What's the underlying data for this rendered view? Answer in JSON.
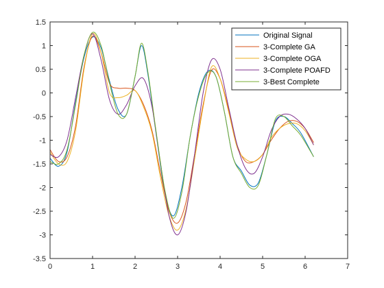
{
  "chart_data": {
    "type": "line",
    "title": "",
    "xlabel": "",
    "ylabel": "",
    "xlim": [
      0,
      7
    ],
    "ylim": [
      -3.5,
      1.5
    ],
    "xticks": [
      0,
      1,
      2,
      3,
      4,
      5,
      6,
      7
    ],
    "xtick_labels": [
      "0",
      "1",
      "2",
      "3",
      "4",
      "5",
      "6",
      "7"
    ],
    "yticks": [
      -3.5,
      -3,
      -2.5,
      -2,
      -1.5,
      -1,
      -0.5,
      0,
      0.5,
      1,
      1.5
    ],
    "ytick_labels": [
      "-3.5",
      "-3",
      "-2.5",
      "-2",
      "-1.5",
      "-1",
      "-0.5",
      "0",
      "0.5",
      "1",
      "1.5"
    ],
    "grid": false,
    "legend_position": "top-right",
    "series": [
      {
        "name": "Original Signal",
        "color": "#0072BD",
        "x": [
          0,
          0.2,
          0.4,
          0.6,
          0.8,
          1.0,
          1.2,
          1.4,
          1.6,
          1.8,
          2.0,
          2.15,
          2.3,
          2.5,
          2.7,
          2.9,
          3.1,
          3.3,
          3.5,
          3.7,
          3.9,
          4.1,
          4.3,
          4.5,
          4.7,
          4.9,
          5.1,
          5.3,
          5.5,
          5.7,
          5.9,
          6.2
        ],
        "y": [
          -1.38,
          -1.55,
          -1.25,
          -0.2,
          0.75,
          1.18,
          0.95,
          0.25,
          -0.35,
          -0.45,
          0.35,
          1.0,
          0.4,
          -0.9,
          -2.1,
          -2.6,
          -2.0,
          -0.9,
          0.0,
          0.45,
          0.35,
          -0.4,
          -1.35,
          -1.65,
          -1.95,
          -1.9,
          -1.3,
          -0.6,
          -0.5,
          -0.65,
          -0.85,
          -1.35
        ]
      },
      {
        "name": "3-Complete GA",
        "color": "#D95319",
        "x": [
          0,
          0.2,
          0.4,
          0.6,
          0.8,
          1.0,
          1.2,
          1.4,
          1.6,
          1.8,
          2.0,
          2.2,
          2.4,
          2.6,
          2.8,
          3.0,
          3.2,
          3.4,
          3.6,
          3.8,
          4.0,
          4.2,
          4.4,
          4.6,
          4.8,
          5.0,
          5.2,
          5.4,
          5.6,
          5.8,
          6.0,
          6.2
        ],
        "y": [
          -1.2,
          -1.45,
          -1.35,
          -0.7,
          0.55,
          1.2,
          0.85,
          0.2,
          0.1,
          0.1,
          0.05,
          -0.25,
          -0.8,
          -1.7,
          -2.5,
          -2.75,
          -2.3,
          -1.3,
          -0.25,
          0.48,
          0.3,
          -0.35,
          -1.1,
          -1.45,
          -1.45,
          -1.3,
          -1.0,
          -0.75,
          -0.6,
          -0.6,
          -0.75,
          -1.05
        ]
      },
      {
        "name": "3-Complete OGA",
        "color": "#EDB120",
        "x": [
          0,
          0.2,
          0.4,
          0.6,
          0.8,
          1.0,
          1.2,
          1.4,
          1.6,
          1.8,
          2.0,
          2.2,
          2.4,
          2.6,
          2.8,
          3.0,
          3.2,
          3.4,
          3.6,
          3.8,
          4.0,
          4.2,
          4.4,
          4.6,
          4.8,
          5.0,
          5.2,
          5.4,
          5.6,
          5.8,
          6.0,
          6.2
        ],
        "y": [
          -1.25,
          -1.5,
          -1.45,
          -0.8,
          0.5,
          1.25,
          0.85,
          0.0,
          -0.1,
          -0.05,
          0.05,
          -0.3,
          -0.85,
          -1.8,
          -2.6,
          -2.9,
          -2.45,
          -1.4,
          -0.3,
          0.55,
          0.3,
          -0.4,
          -1.15,
          -1.4,
          -1.45,
          -1.3,
          -0.95,
          -0.75,
          -0.65,
          -0.65,
          -0.8,
          -1.1
        ]
      },
      {
        "name": "3-Complete POAFD",
        "color": "#7E2F8E",
        "x": [
          0,
          0.2,
          0.4,
          0.6,
          0.8,
          1.0,
          1.2,
          1.4,
          1.6,
          1.8,
          2.0,
          2.2,
          2.4,
          2.6,
          2.8,
          3.0,
          3.2,
          3.4,
          3.6,
          3.8,
          4.0,
          4.2,
          4.4,
          4.6,
          4.8,
          5.0,
          5.2,
          5.4,
          5.6,
          5.8,
          6.0,
          6.2
        ],
        "y": [
          -1.3,
          -1.35,
          -1.0,
          -0.1,
          0.8,
          1.25,
          0.7,
          -0.15,
          -0.45,
          -0.25,
          0.15,
          0.3,
          -0.3,
          -1.5,
          -2.6,
          -3.0,
          -2.5,
          -1.3,
          0.0,
          0.7,
          0.5,
          -0.3,
          -1.1,
          -1.6,
          -1.7,
          -1.35,
          -0.8,
          -0.5,
          -0.45,
          -0.55,
          -0.75,
          -1.1
        ]
      },
      {
        "name": "3-Best Complete",
        "color": "#77AC30",
        "x": [
          0,
          0.2,
          0.4,
          0.6,
          0.8,
          1.0,
          1.2,
          1.4,
          1.6,
          1.8,
          2.0,
          2.15,
          2.3,
          2.5,
          2.7,
          2.9,
          3.1,
          3.3,
          3.5,
          3.7,
          3.9,
          4.1,
          4.3,
          4.5,
          4.7,
          4.9,
          5.1,
          5.3,
          5.5,
          5.7,
          5.9,
          6.2
        ],
        "y": [
          -1.45,
          -1.5,
          -1.2,
          -0.25,
          0.8,
          1.28,
          1.0,
          0.2,
          -0.45,
          -0.45,
          0.35,
          1.05,
          0.45,
          -0.85,
          -2.05,
          -2.65,
          -2.1,
          -0.9,
          -0.05,
          0.42,
          0.35,
          -0.4,
          -1.35,
          -1.7,
          -2.0,
          -1.95,
          -1.3,
          -0.55,
          -0.5,
          -0.7,
          -0.9,
          -1.35
        ]
      }
    ]
  }
}
